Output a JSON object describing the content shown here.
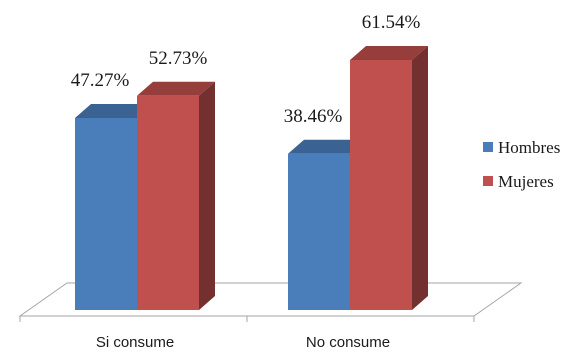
{
  "chart_data": {
    "type": "bar",
    "categories": [
      "Si consume",
      "No consume"
    ],
    "series": [
      {
        "name": "Hombres",
        "values": [
          47.27,
          38.46
        ],
        "color": "#4a7ebb"
      },
      {
        "name": "Mujeres",
        "values": [
          52.73,
          61.54
        ],
        "color": "#c0504d"
      }
    ],
    "data_labels": [
      [
        "47.27%",
        "38.46%"
      ],
      [
        "52.73%",
        "61.54%"
      ]
    ],
    "ylim": [
      0,
      70
    ],
    "grid": false,
    "legend": "right",
    "style": "3d-clustered-column"
  }
}
